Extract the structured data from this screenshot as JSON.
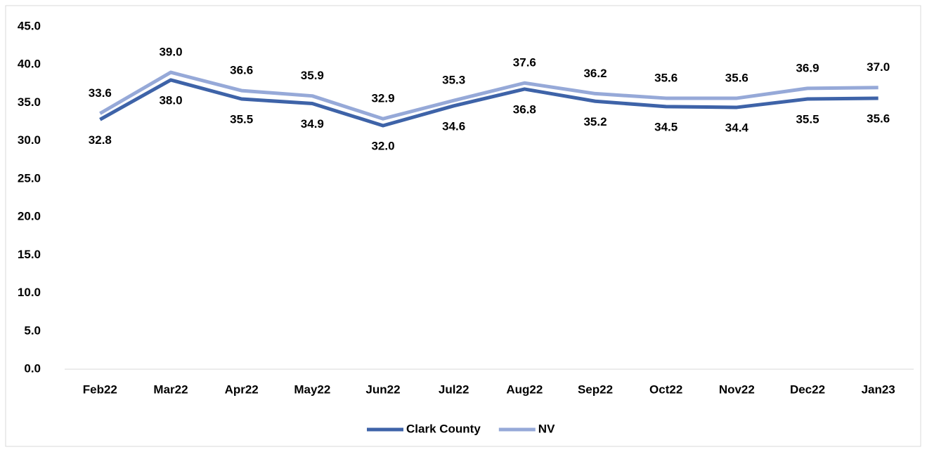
{
  "chart_data": {
    "type": "line",
    "categories": [
      "Feb22",
      "Mar22",
      "Apr22",
      "May22",
      "Jun22",
      "Jul22",
      "Aug22",
      "Sep22",
      "Oct22",
      "Nov22",
      "Dec22",
      "Jan23"
    ],
    "series": [
      {
        "name": "Clark County",
        "color": "#3e63a8",
        "label_position": "below",
        "values": [
          32.8,
          38.0,
          35.5,
          34.9,
          32.0,
          34.6,
          36.8,
          35.2,
          34.5,
          34.4,
          35.5,
          35.6
        ],
        "value_labels": [
          "32.8",
          "38.0",
          "35.5",
          "34.9",
          "32.0",
          "34.6",
          "36.8",
          "35.2",
          "34.5",
          "34.4",
          "35.5",
          "35.6"
        ]
      },
      {
        "name": "NV",
        "color": "#96a9d8",
        "label_position": "above",
        "values": [
          33.6,
          39.0,
          36.6,
          35.9,
          32.9,
          35.3,
          37.6,
          36.2,
          35.6,
          35.6,
          36.9,
          37.0
        ],
        "value_labels": [
          "33.6",
          "39.0",
          "36.6",
          "35.9",
          "32.9",
          "35.3",
          "37.6",
          "36.2",
          "35.6",
          "35.6",
          "36.9",
          "37.0"
        ]
      }
    ],
    "ylim": [
      0,
      45
    ],
    "yticks": [
      {
        "value": 0,
        "label": "0.0"
      },
      {
        "value": 5,
        "label": "5.0"
      },
      {
        "value": 10,
        "label": "10.0"
      },
      {
        "value": 15,
        "label": "15.0"
      },
      {
        "value": 20,
        "label": "20.0"
      },
      {
        "value": 25,
        "label": "25.0"
      },
      {
        "value": 30,
        "label": "30.0"
      },
      {
        "value": 35,
        "label": "35.0"
      },
      {
        "value": 40,
        "label": "40.0"
      },
      {
        "value": 45,
        "label": "45.0"
      }
    ],
    "grid": false,
    "legend": "bottom"
  }
}
